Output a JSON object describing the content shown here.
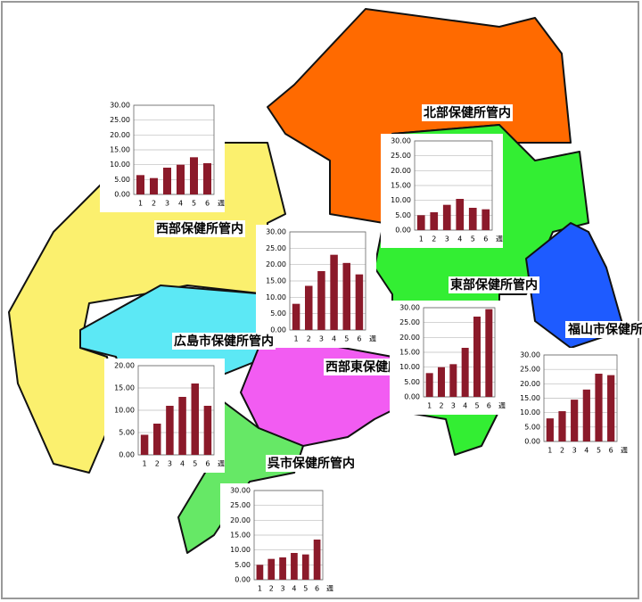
{
  "chart_data": [
    {
      "type": "bar",
      "title": "西部保健所管内",
      "categories": [
        "1",
        "2",
        "3",
        "4",
        "5",
        "6"
      ],
      "x_label": "週",
      "values": [
        6.5,
        5.5,
        9,
        10,
        12.5,
        10.5
      ],
      "color": "#8b1a2a",
      "ylim": [
        0,
        30
      ],
      "yticks": [
        {
          "value": 0,
          "label": "0.00"
        },
        {
          "value": 5,
          "label": "5.00"
        },
        {
          "value": 10,
          "label": "10.00"
        },
        {
          "value": 15,
          "label": "15.00"
        },
        {
          "value": 20,
          "label": "20.00"
        },
        {
          "value": 25,
          "label": "25.00"
        },
        {
          "value": 30,
          "label": "30.00"
        }
      ],
      "grid": true
    },
    {
      "type": "bar",
      "title": "北部保健所管内",
      "categories": [
        "1",
        "2",
        "3",
        "4",
        "5",
        "6"
      ],
      "x_label": "週",
      "values": [
        5,
        6,
        8.5,
        10.5,
        7.5,
        7
      ],
      "color": "#8b1a2a",
      "ylim": [
        0,
        30
      ],
      "yticks": [
        {
          "value": 0,
          "label": "0.00"
        },
        {
          "value": 5,
          "label": "5.00"
        },
        {
          "value": 10,
          "label": "10.00"
        },
        {
          "value": 15,
          "label": "15.00"
        },
        {
          "value": 20,
          "label": "20.00"
        },
        {
          "value": 25,
          "label": "25.00"
        },
        {
          "value": 30,
          "label": "30.00"
        }
      ],
      "grid": true
    },
    {
      "type": "bar",
      "title": "西部東保健所管内",
      "categories": [
        "1",
        "2",
        "3",
        "4",
        "5",
        "6"
      ],
      "x_label": "週",
      "values": [
        8,
        13.5,
        18,
        23,
        20.5,
        17
      ],
      "color": "#8b1a2a",
      "ylim": [
        0,
        30
      ],
      "yticks": [
        {
          "value": 0,
          "label": "0.00"
        },
        {
          "value": 5,
          "label": "5.00"
        },
        {
          "value": 10,
          "label": "10.00"
        },
        {
          "value": 15,
          "label": "15.00"
        },
        {
          "value": 20,
          "label": "20.00"
        },
        {
          "value": 25,
          "label": "25.00"
        },
        {
          "value": 30,
          "label": "30.00"
        }
      ],
      "grid": true
    },
    {
      "type": "bar",
      "title": "東部保健所管内",
      "categories": [
        "1",
        "2",
        "3",
        "4",
        "5",
        "6"
      ],
      "x_label": "週",
      "values": [
        8,
        10,
        11,
        16.5,
        27,
        29.5
      ],
      "color": "#8b1a2a",
      "ylim": [
        0,
        30
      ],
      "yticks": [
        {
          "value": 0,
          "label": "0.00"
        },
        {
          "value": 5,
          "label": "5.00"
        },
        {
          "value": 10,
          "label": "10.00"
        },
        {
          "value": 15,
          "label": "15.00"
        },
        {
          "value": 20,
          "label": "20.00"
        },
        {
          "value": 25,
          "label": "25.00"
        },
        {
          "value": 30,
          "label": "30.00"
        }
      ],
      "grid": true
    },
    {
      "type": "bar",
      "title": "広島市保健所管内",
      "categories": [
        "1",
        "2",
        "3",
        "4",
        "5",
        "6"
      ],
      "x_label": "週",
      "values": [
        4.5,
        7,
        11,
        13,
        16,
        11
      ],
      "color": "#8b1a2a",
      "ylim": [
        0,
        20
      ],
      "yticks": [
        {
          "value": 0,
          "label": "0.00"
        },
        {
          "value": 5,
          "label": "5.00"
        },
        {
          "value": 10,
          "label": "10.00"
        },
        {
          "value": 15,
          "label": "15.00"
        },
        {
          "value": 20,
          "label": "20.00"
        }
      ],
      "grid": true
    },
    {
      "type": "bar",
      "title": "呉市保健所管内",
      "categories": [
        "1",
        "2",
        "3",
        "4",
        "5",
        "6"
      ],
      "x_label": "週",
      "values": [
        5,
        7,
        7.5,
        9,
        8.5,
        13.5
      ],
      "color": "#8b1a2a",
      "ylim": [
        0,
        30
      ],
      "yticks": [
        {
          "value": 0,
          "label": "0.00"
        },
        {
          "value": 5,
          "label": "5.00"
        },
        {
          "value": 10,
          "label": "10.00"
        },
        {
          "value": 15,
          "label": "15.00"
        },
        {
          "value": 20,
          "label": "20.00"
        },
        {
          "value": 25,
          "label": "25.00"
        },
        {
          "value": 30,
          "label": "30.00"
        }
      ],
      "grid": true
    },
    {
      "type": "bar",
      "title": "福山市保健所管内",
      "categories": [
        "1",
        "2",
        "3",
        "4",
        "5",
        "6"
      ],
      "x_label": "週",
      "values": [
        8,
        10.5,
        14.5,
        18,
        23.5,
        23
      ],
      "color": "#8b1a2a",
      "ylim": [
        0,
        30
      ],
      "yticks": [
        {
          "value": 0,
          "label": "0.00"
        },
        {
          "value": 5,
          "label": "5.00"
        },
        {
          "value": 10,
          "label": "10.00"
        },
        {
          "value": 15,
          "label": "15.00"
        },
        {
          "value": 20,
          "label": "20.00"
        },
        {
          "value": 25,
          "label": "25.00"
        },
        {
          "value": 30,
          "label": "30.00"
        }
      ],
      "grid": true
    }
  ]
}
